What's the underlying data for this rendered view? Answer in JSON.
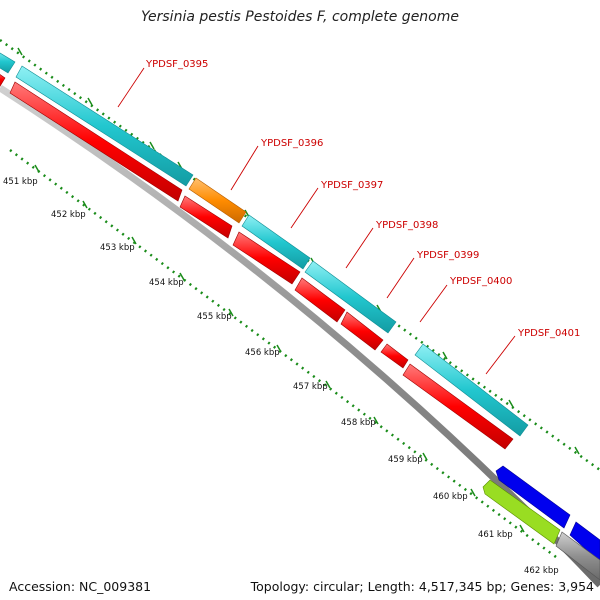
{
  "title": "Yersinia pestis Pestoides F, complete genome",
  "footer": {
    "accession": "Accession: NC_009381",
    "info": "Topology: circular; Length: 4,517,345 bp; Genes: 3,954"
  },
  "ticks": [
    "451 kbp",
    "452 kbp",
    "453 kbp",
    "454 kbp",
    "455 kbp",
    "456 kbp",
    "457 kbp",
    "458 kbp",
    "459 kbp",
    "460 kbp",
    "461 kbp",
    "462 kbp"
  ],
  "genes": [
    "YPDSF_0395",
    "YPDSF_0396",
    "YPDSF_0397",
    "YPDSF_0398",
    "YPDSF_0399",
    "YPDSF_0400",
    "YPDSF_0401"
  ],
  "colors": {
    "cds_forward": "#22c7cf",
    "cds_highlight": "#ff8c00",
    "orf_red": "#ff0000",
    "blue_feature": "#0000ee",
    "green_feature": "#99dd22",
    "backbone": "#808080",
    "tick_green": "#1a8c1a",
    "label_red": "#cc0000"
  }
}
